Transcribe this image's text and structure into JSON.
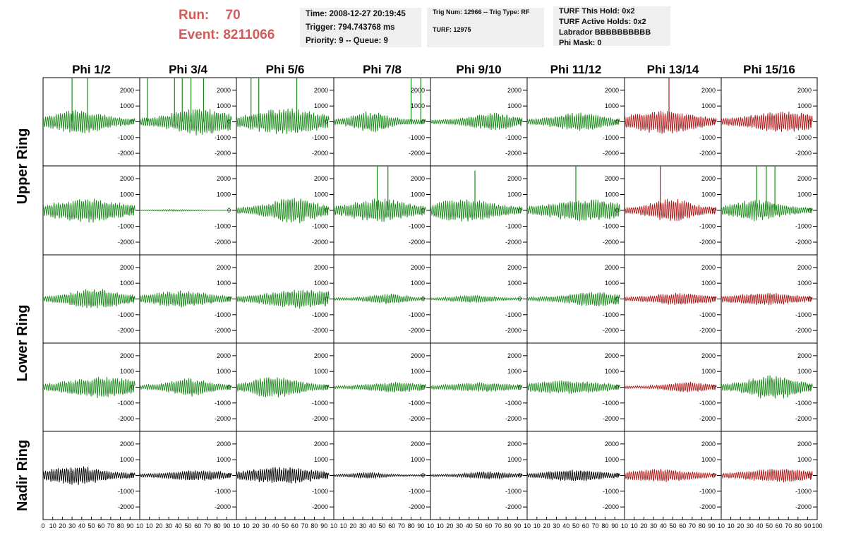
{
  "header": {
    "run_label": "Run:",
    "run_value": "70",
    "event_label": "Event:",
    "event_value": "8211066",
    "time": "Time: 2008-12-27 20:19:45",
    "trigger": "Trigger: 794.743768 ms",
    "priority_queue": "Priority: 9 -- Queue: 9",
    "trig_num_type": "Trig Num: 12966 -- Trig Type: RF",
    "turf": "TURF: 12975",
    "turf_this_hold": "TURF This Hold: 0x2",
    "turf_active_holds": "TURF Active Holds: 0x2",
    "labrador": "Labrador BBBBBBBBBB",
    "phi_mask": "Phi Mask: 0"
  },
  "colors": {
    "green": "#1a8a1a",
    "red": "#b01818",
    "black": "#000000",
    "header_red": "#d45a5a"
  },
  "chart_data": {
    "type": "line",
    "columns": [
      "Phi 1/2",
      "Phi 3/4",
      "Phi 5/6",
      "Phi 7/8",
      "Phi 9/10",
      "Phi 11/12",
      "Phi 13/14",
      "Phi 15/16"
    ],
    "rows": [
      "Upper Ring",
      "Upper Ring",
      "Lower Ring",
      "Lower Ring",
      "Nadir Ring"
    ],
    "row_labels": [
      {
        "text": "Upper Ring",
        "spans": [
          0,
          1
        ]
      },
      {
        "text": "Lower Ring",
        "spans": [
          2,
          3
        ]
      },
      {
        "text": "Nadir Ring",
        "spans": [
          4
        ]
      }
    ],
    "xlim": [
      0,
      100
    ],
    "ylim": [
      -2800,
      2800
    ],
    "yticks": [
      2000,
      1000,
      0,
      -1000,
      -2000
    ],
    "ytick_labels": [
      "2000",
      "1000",
      "0",
      "-1000",
      "-2000"
    ],
    "xtick_labels": [
      "0",
      "10",
      "20",
      "30",
      "40",
      "50",
      "60",
      "70",
      "80",
      "90",
      "100"
    ],
    "xtick_labels_inner": [
      "10",
      "20",
      "30",
      "40",
      "50",
      "60",
      "70",
      "80",
      "90",
      "100"
    ],
    "x_tick_labels_first_panel": [
      "0",
      "10",
      "20",
      "30",
      "40",
      "50",
      "60",
      "70",
      "80",
      "90",
      "10"
    ],
    "x_tick_labels_panel": [
      "10",
      "20",
      "30",
      "40",
      "50",
      "60",
      "70",
      "80",
      "90",
      "10"
    ],
    "x_tick_labels_last_panel": [
      "10",
      "20",
      "30",
      "40",
      "50",
      "60",
      "70",
      "80",
      "90",
      "100"
    ],
    "waveform_xrange": [
      0,
      95
    ],
    "panels": [
      [
        {
          "color": "green",
          "amp": 800,
          "spikes": [
            {
              "x": 30,
              "y": 3000
            },
            {
              "x": 46,
              "y": 3000
            }
          ]
        },
        {
          "color": "green",
          "amp": 900,
          "spikes": [
            {
              "x": 8,
              "y": 3000
            },
            {
              "x": 36,
              "y": 3000
            },
            {
              "x": 44,
              "y": 3000
            },
            {
              "x": 53,
              "y": 3000
            },
            {
              "x": 66,
              "y": 3000
            }
          ]
        },
        {
          "color": "green",
          "amp": 900,
          "spikes": [
            {
              "x": 15,
              "y": 3000
            },
            {
              "x": 23,
              "y": 3000
            },
            {
              "x": 62,
              "y": 3000
            }
          ]
        },
        {
          "color": "green",
          "amp": 700,
          "spikes": [
            {
              "x": 80,
              "y": 3000
            },
            {
              "x": 90,
              "y": 3000
            }
          ]
        },
        {
          "color": "green",
          "amp": 600,
          "spikes": []
        },
        {
          "color": "green",
          "amp": 600,
          "spikes": []
        },
        {
          "color": "red",
          "amp": 800,
          "spikes": [
            {
              "x": 46,
              "y": 2800
            }
          ]
        },
        {
          "color": "red",
          "amp": 700,
          "spikes": []
        }
      ],
      [
        {
          "color": "green",
          "amp": 800,
          "spikes": []
        },
        {
          "color": "green",
          "amp": 60,
          "spikes": []
        },
        {
          "color": "green",
          "amp": 850,
          "spikes": []
        },
        {
          "color": "green",
          "amp": 800,
          "spikes": [
            {
              "x": 45,
              "y": 3000
            },
            {
              "x": 56,
              "y": 3000
            }
          ]
        },
        {
          "color": "green",
          "amp": 750,
          "spikes": [
            {
              "x": 46,
              "y": 2500
            }
          ]
        },
        {
          "color": "green",
          "amp": 750,
          "spikes": [
            {
              "x": 50,
              "y": 3000
            }
          ]
        },
        {
          "color": "red",
          "amp": 800,
          "spikes": [
            {
              "x": 37,
              "y": 2800
            }
          ]
        },
        {
          "color": "green",
          "amp": 700,
          "spikes": [
            {
              "x": 37,
              "y": 3000
            },
            {
              "x": 47,
              "y": 3000
            },
            {
              "x": 56,
              "y": 3000
            }
          ]
        }
      ],
      [
        {
          "color": "green",
          "amp": 700,
          "spikes": []
        },
        {
          "color": "green",
          "amp": 550,
          "spikes": []
        },
        {
          "color": "green",
          "amp": 650,
          "spikes": []
        },
        {
          "color": "green",
          "amp": 350,
          "spikes": []
        },
        {
          "color": "green",
          "amp": 250,
          "spikes": []
        },
        {
          "color": "green",
          "amp": 500,
          "spikes": []
        },
        {
          "color": "red",
          "amp": 400,
          "spikes": []
        },
        {
          "color": "red",
          "amp": 400,
          "spikes": []
        }
      ],
      [
        {
          "color": "green",
          "amp": 700,
          "spikes": []
        },
        {
          "color": "green",
          "amp": 600,
          "spikes": []
        },
        {
          "color": "green",
          "amp": 700,
          "spikes": []
        },
        {
          "color": "green",
          "amp": 350,
          "spikes": []
        },
        {
          "color": "green",
          "amp": 300,
          "spikes": []
        },
        {
          "color": "green",
          "amp": 450,
          "spikes": []
        },
        {
          "color": "red",
          "amp": 350,
          "spikes": []
        },
        {
          "color": "green",
          "amp": 800,
          "spikes": []
        }
      ],
      [
        {
          "color": "black",
          "amp": 650,
          "spikes": []
        },
        {
          "color": "black",
          "amp": 350,
          "spikes": []
        },
        {
          "color": "black",
          "amp": 550,
          "spikes": []
        },
        {
          "color": "black",
          "amp": 200,
          "spikes": []
        },
        {
          "color": "black",
          "amp": 250,
          "spikes": []
        },
        {
          "color": "black",
          "amp": 400,
          "spikes": []
        },
        {
          "color": "red",
          "amp": 450,
          "spikes": []
        },
        {
          "color": "red",
          "amp": 450,
          "spikes": []
        }
      ]
    ]
  }
}
